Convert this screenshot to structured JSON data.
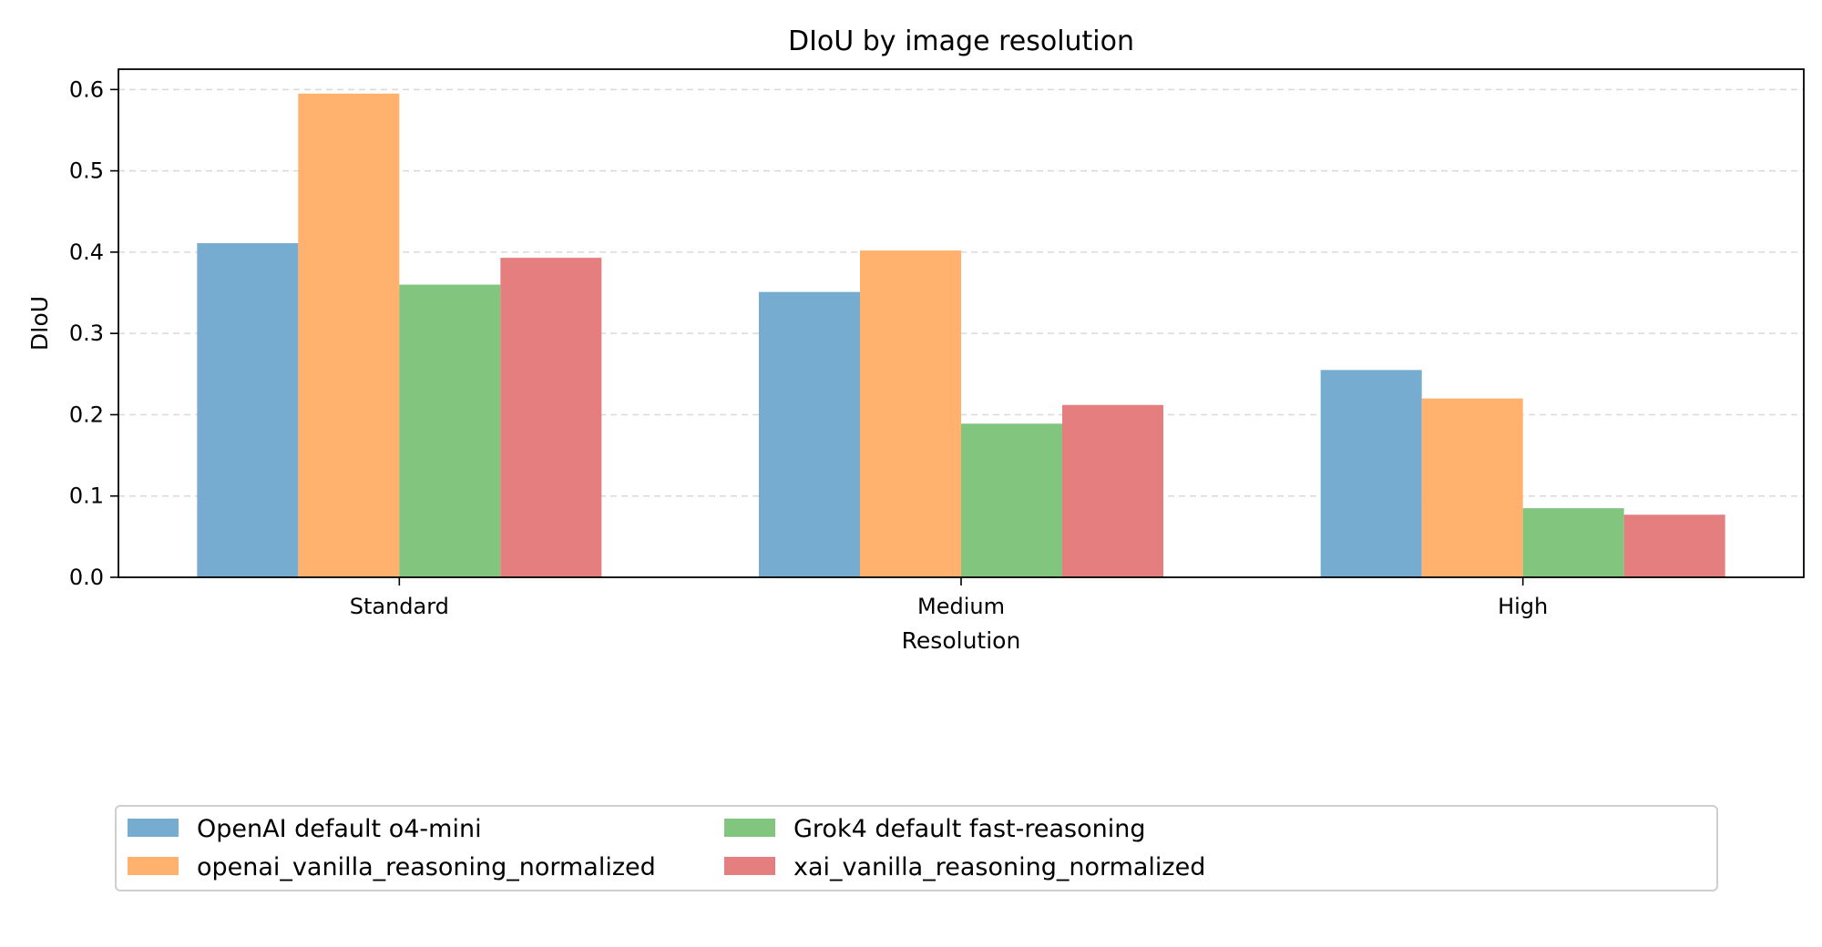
{
  "chart_data": {
    "type": "bar",
    "title": "DIoU by image resolution",
    "xlabel": "Resolution",
    "ylabel": "DIoU",
    "categories": [
      "Standard",
      "Medium",
      "High"
    ],
    "ylim": [
      0,
      0.625
    ],
    "yticks": [
      "0.0",
      "0.1",
      "0.2",
      "0.3",
      "0.4",
      "0.5",
      "0.6"
    ],
    "grid": "y, dashed",
    "legend_position": "bottom",
    "series": [
      {
        "name": "OpenAI default o4-mini",
        "color": "#77acd1",
        "values": [
          0.411,
          0.351,
          0.255
        ]
      },
      {
        "name": "openai_vanilla_reasoning_normalized",
        "color": "#ffb16d",
        "values": [
          0.595,
          0.402,
          0.22
        ]
      },
      {
        "name": "Grok4 default fast-reasoning",
        "color": "#81c57f",
        "values": [
          0.36,
          0.189,
          0.085
        ]
      },
      {
        "name": "xai_vanilla_reasoning_normalized",
        "color": "#e57e7e",
        "values": [
          0.393,
          0.212,
          0.077
        ]
      }
    ]
  }
}
